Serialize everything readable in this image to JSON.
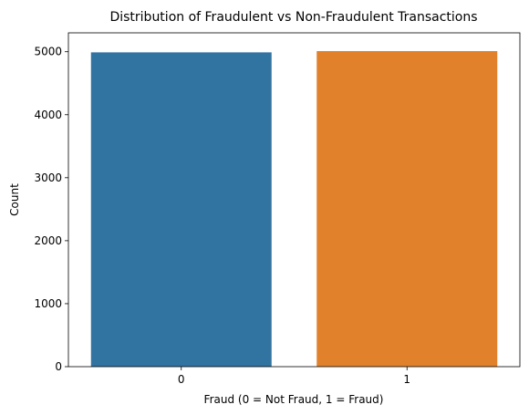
{
  "chart_data": {
    "type": "bar",
    "title": "Distribution of Fraudulent vs Non-Fraudulent Transactions",
    "xlabel": "Fraud (0 = Not Fraud, 1 = Fraud)",
    "ylabel": "Count",
    "categories": [
      "0",
      "1"
    ],
    "values": [
      4990,
      5010
    ],
    "colors": [
      "#3274a1",
      "#e1812c"
    ],
    "ylim": [
      0,
      5300
    ],
    "yticks": [
      0,
      1000,
      2000,
      3000,
      4000,
      5000
    ],
    "grid": false,
    "legend": "none"
  }
}
